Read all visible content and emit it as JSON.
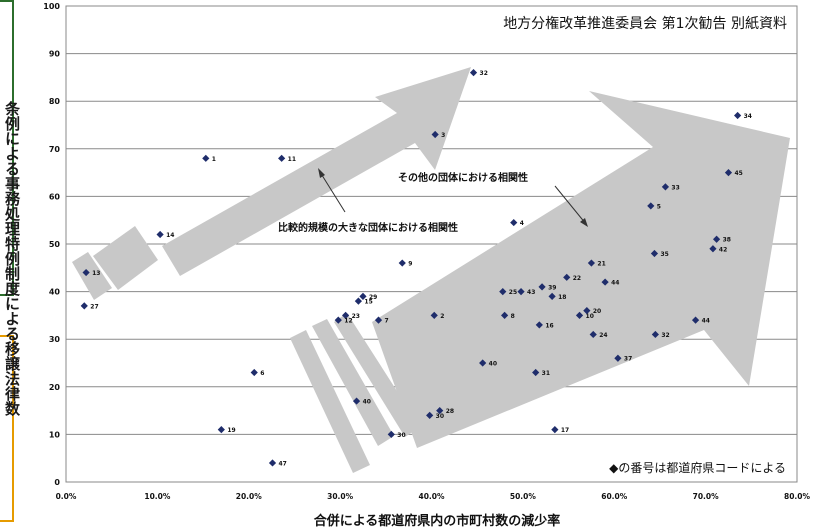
{
  "chart_data": {
    "type": "scatter",
    "title": "地方分権改革推進委員会 第1次勧告 別紙資料",
    "xlabel": "合併による都道府県内の市町村数の減少率",
    "ylabel": "条例による事務処理特例制度による移譲法律数",
    "xlim": [
      0,
      80
    ],
    "ylim": [
      0,
      100
    ],
    "x_ticks": [
      "0.0%",
      "10.0%",
      "20.0%",
      "30.0%",
      "40.0%",
      "50.0%",
      "60.0%",
      "70.0%",
      "80.0%"
    ],
    "y_ticks": [
      "0",
      "10",
      "20",
      "30",
      "40",
      "50",
      "60",
      "70",
      "80",
      "90",
      "100"
    ],
    "grid": "horizontal",
    "marker_color": "#1f2d6b",
    "arrow_color": "#c8c8c8",
    "note": "◆の番号は都道府県コードによる",
    "annotations": [
      "比較的規模の大きな団体における相関性",
      "その他の団体における相関性"
    ],
    "points": [
      {
        "x": 2.2,
        "y": 44,
        "label": "13"
      },
      {
        "x": 2.0,
        "y": 37,
        "label": "27"
      },
      {
        "x": 10.3,
        "y": 52,
        "label": "14"
      },
      {
        "x": 15.3,
        "y": 68,
        "label": "1"
      },
      {
        "x": 23.6,
        "y": 68,
        "label": "11"
      },
      {
        "x": 17.0,
        "y": 11,
        "label": "19"
      },
      {
        "x": 20.6,
        "y": 23,
        "label": "6"
      },
      {
        "x": 22.6,
        "y": 4,
        "label": "47"
      },
      {
        "x": 44.6,
        "y": 86,
        "label": "32"
      },
      {
        "x": 40.4,
        "y": 73,
        "label": "3"
      },
      {
        "x": 73.5,
        "y": 77,
        "label": "34"
      },
      {
        "x": 72.5,
        "y": 65,
        "label": "45"
      },
      {
        "x": 65.6,
        "y": 62,
        "label": "33"
      },
      {
        "x": 64.0,
        "y": 58,
        "label": "5"
      },
      {
        "x": 49.0,
        "y": 54.5,
        "label": "4"
      },
      {
        "x": 71.2,
        "y": 51,
        "label": "38"
      },
      {
        "x": 70.8,
        "y": 49,
        "label": "42"
      },
      {
        "x": 64.4,
        "y": 48,
        "label": "35"
      },
      {
        "x": 36.8,
        "y": 46,
        "label": "9"
      },
      {
        "x": 57.5,
        "y": 46,
        "label": "21"
      },
      {
        "x": 54.8,
        "y": 43,
        "label": "22"
      },
      {
        "x": 59.0,
        "y": 42,
        "label": "44"
      },
      {
        "x": 52.1,
        "y": 41,
        "label": "39"
      },
      {
        "x": 47.8,
        "y": 40,
        "label": "25"
      },
      {
        "x": 49.8,
        "y": 40,
        "label": "43"
      },
      {
        "x": 53.2,
        "y": 39,
        "label": "18"
      },
      {
        "x": 32.5,
        "y": 39,
        "label": "29"
      },
      {
        "x": 32.0,
        "y": 38,
        "label": "15"
      },
      {
        "x": 30.6,
        "y": 35,
        "label": "23"
      },
      {
        "x": 40.3,
        "y": 35,
        "label": "2"
      },
      {
        "x": 48.0,
        "y": 35,
        "label": "8"
      },
      {
        "x": 29.8,
        "y": 34,
        "label": "12"
      },
      {
        "x": 34.2,
        "y": 34,
        "label": "7"
      },
      {
        "x": 56.2,
        "y": 35,
        "label": "10"
      },
      {
        "x": 57.0,
        "y": 36,
        "label": "20"
      },
      {
        "x": 51.8,
        "y": 33,
        "label": "16"
      },
      {
        "x": 57.7,
        "y": 31,
        "label": "24"
      },
      {
        "x": 64.5,
        "y": 31,
        "label": "32"
      },
      {
        "x": 68.9,
        "y": 34,
        "label": "44"
      },
      {
        "x": 60.4,
        "y": 26,
        "label": "37"
      },
      {
        "x": 45.6,
        "y": 25,
        "label": "40"
      },
      {
        "x": 51.4,
        "y": 23,
        "label": "31"
      },
      {
        "x": 31.8,
        "y": 17,
        "label": "40"
      },
      {
        "x": 39.8,
        "y": 14,
        "label": "30"
      },
      {
        "x": 40.9,
        "y": 15,
        "label": "28"
      },
      {
        "x": 35.6,
        "y": 10,
        "label": "30"
      },
      {
        "x": 53.5,
        "y": 11,
        "label": "17"
      }
    ]
  }
}
